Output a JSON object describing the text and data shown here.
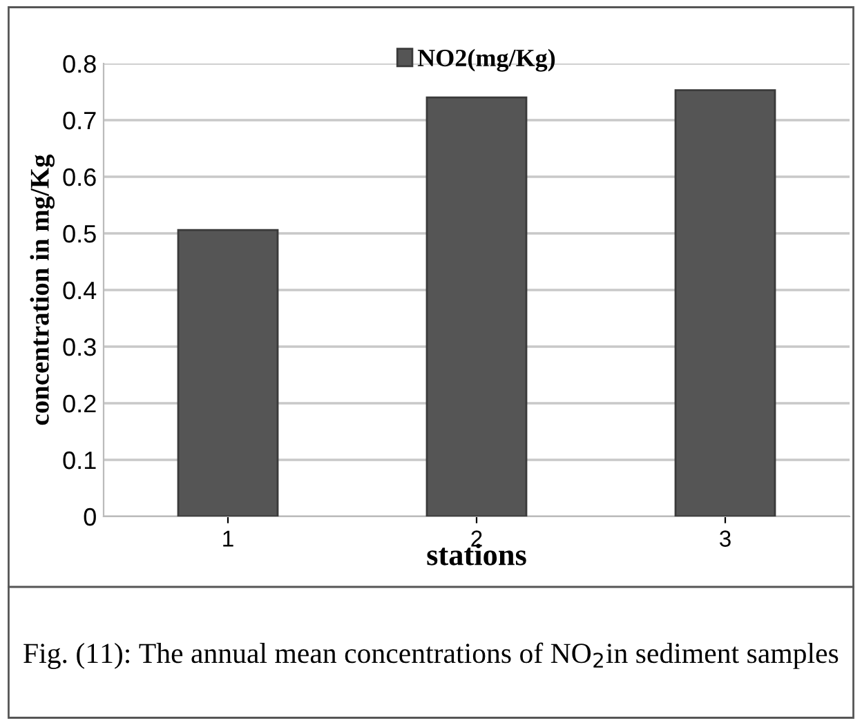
{
  "chart_data": {
    "type": "bar",
    "xlabel": "stations",
    "ylabel": "concentration in mg/Kg",
    "categories": [
      "1",
      "2",
      "3"
    ],
    "series": [
      {
        "name": "NO2(mg/Kg)",
        "color": "#555555",
        "values": [
          0.506,
          0.74,
          0.753
        ]
      }
    ],
    "ylim": [
      0,
      0.8
    ],
    "yticks": [
      0,
      0.1,
      0.2,
      0.3,
      0.4,
      0.5,
      0.6,
      0.7,
      0.8
    ],
    "grid": "y",
    "legend": "top",
    "annotations": [
      "Fig. (11): The annual mean concentrations of NO$_{2}$in sediment samples"
    ]
  }
}
